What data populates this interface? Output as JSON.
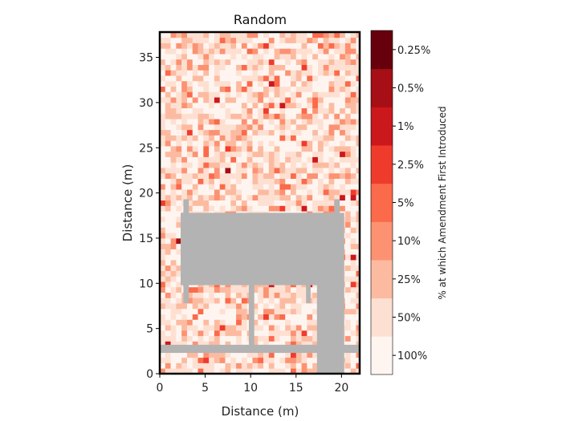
{
  "chart_data": {
    "type": "heatmap",
    "title": "Random",
    "xlabel": "Distance (m)",
    "ylabel": "Distance (m)",
    "xlim": [
      0,
      22
    ],
    "ylim": [
      0,
      37.8
    ],
    "xticks": [
      0,
      5,
      10,
      15,
      20
    ],
    "yticks": [
      0,
      5,
      10,
      15,
      20,
      25,
      30,
      35
    ],
    "cell_size_m": 0.6,
    "colorbar": {
      "title": "% at which Amendment First Introduced",
      "labels": [
        "100%",
        "50%",
        "25%",
        "10%",
        "5%",
        "2.5%",
        "1%",
        "0.5%",
        "0.25%"
      ],
      "colors": [
        "#fff5f0",
        "#fee0d2",
        "#fcbba1",
        "#fc9272",
        "#fb6a4a",
        "#ef3b2c",
        "#cb181d",
        "#a50f15",
        "#67000d"
      ]
    },
    "obstacle_color": "#b3b3b3",
    "obstacles": [
      {
        "name": "main-block",
        "x0": 2.3,
        "x1": 20.3,
        "y0": 9.8,
        "y1": 17.8
      },
      {
        "name": "right-column",
        "x0": 17.3,
        "x1": 20.3,
        "y0": 0,
        "y1": 10
      },
      {
        "name": "horizontal-strip",
        "x0": 0,
        "x1": 22,
        "y0": 2.3,
        "y1": 3.2
      },
      {
        "name": "mid-post",
        "x0": 9.8,
        "x1": 10.4,
        "y0": 3.0,
        "y1": 10
      },
      {
        "name": "left-post-low",
        "x0": 2.6,
        "x1": 3.2,
        "y0": 7.8,
        "y1": 10
      },
      {
        "name": "left-post-high",
        "x0": 2.6,
        "x1": 3.2,
        "y0": 17.5,
        "y1": 19.3
      },
      {
        "name": "right-post-high",
        "x0": 19.2,
        "x1": 19.8,
        "y0": 17.5,
        "y1": 19.3
      },
      {
        "name": "inner-post",
        "x0": 16.1,
        "x1": 16.6,
        "y0": 7.8,
        "y1": 10
      }
    ]
  }
}
